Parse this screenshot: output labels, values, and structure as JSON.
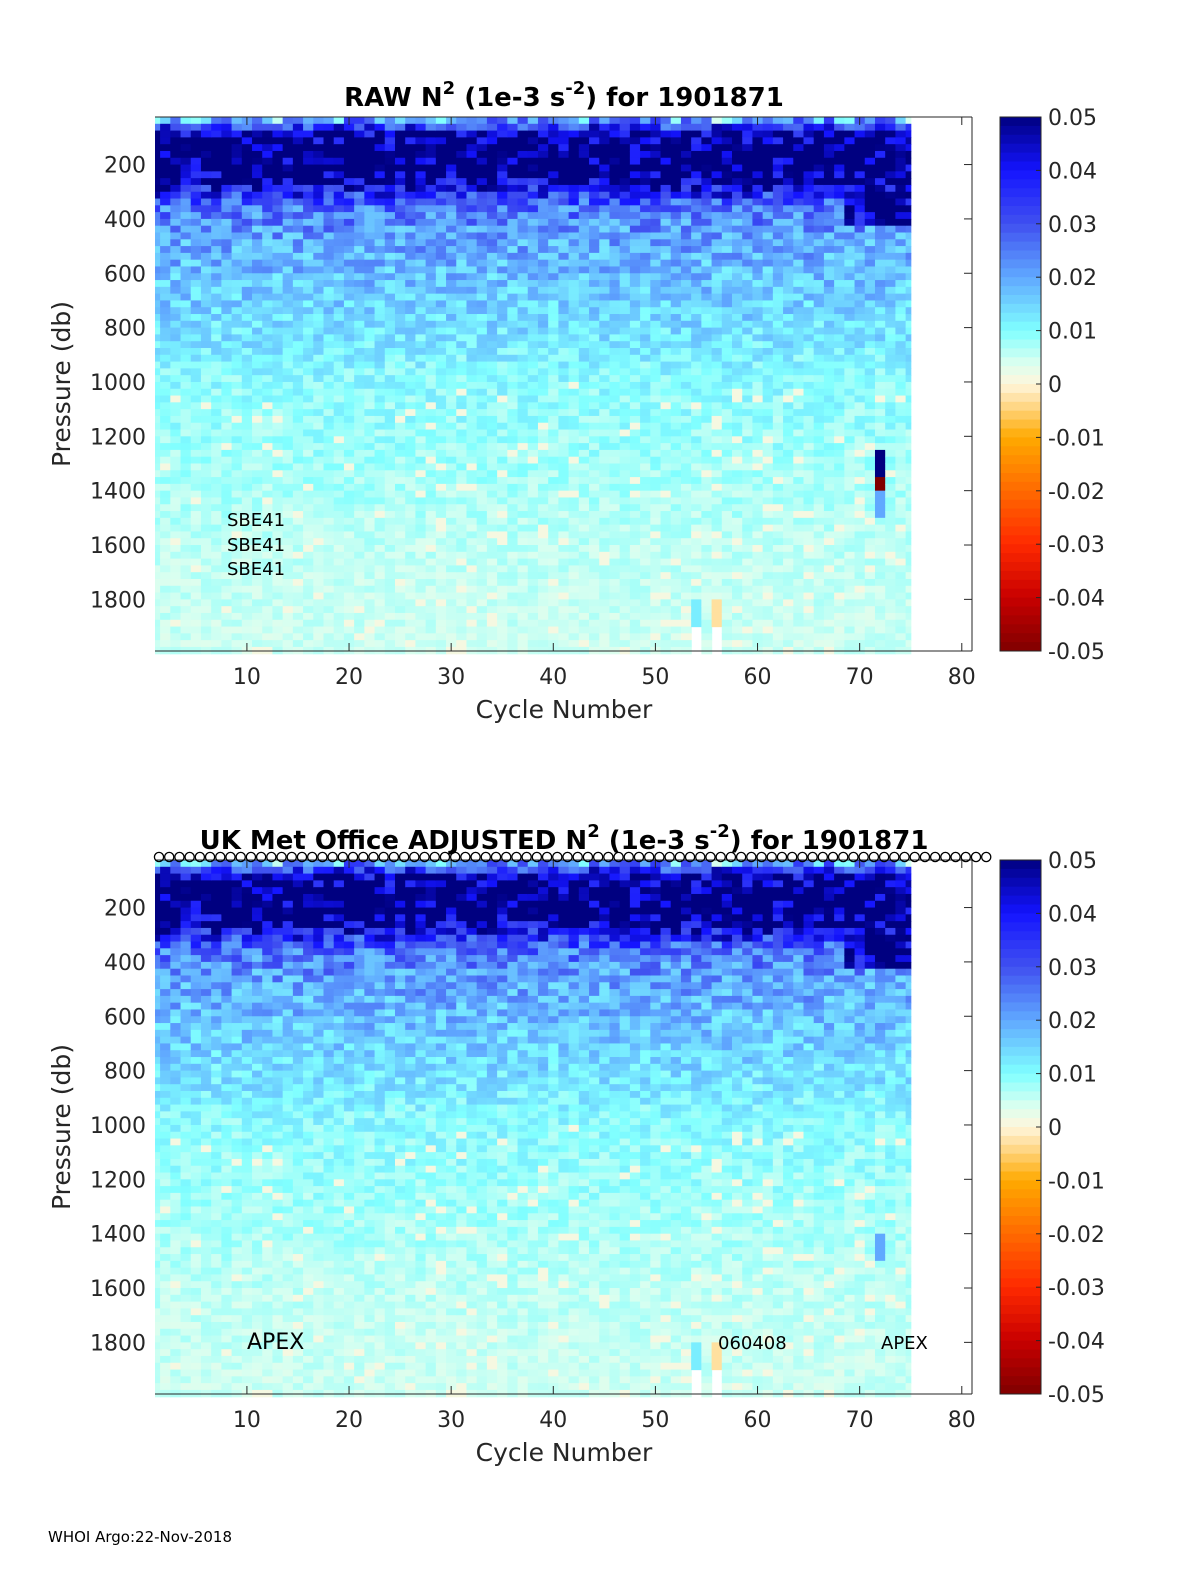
{
  "footer": "WHOI Argo:22-Nov-2018",
  "chart_data": [
    {
      "type": "heatmap",
      "title": {
        "main": "RAW N",
        "sup1": "2",
        "mid": " (1e-3 s",
        "sup2": "-2",
        "end": ") for 1901871"
      },
      "xlabel": "Cycle Number",
      "ylabel": "Pressure (db)",
      "xlim": [
        1,
        81
      ],
      "ylim": [
        25,
        1990
      ],
      "y_reversed": true,
      "xticks": [
        "10",
        "20",
        "30",
        "40",
        "50",
        "60",
        "70",
        "80"
      ],
      "yticks": [
        "200",
        "400",
        "600",
        "800",
        "1000",
        "1200",
        "1400",
        "1600",
        "1800"
      ],
      "cycles": [
        1,
        75
      ],
      "pressure_bin_db": 50,
      "mean_profile": [
        [
          40,
          0.012
        ],
        [
          75,
          0.05
        ],
        [
          150,
          0.06
        ],
        [
          250,
          0.055
        ],
        [
          300,
          0.04
        ],
        [
          350,
          0.028
        ],
        [
          450,
          0.022
        ],
        [
          600,
          0.018
        ],
        [
          800,
          0.014
        ],
        [
          1000,
          0.01
        ],
        [
          1300,
          0.008
        ],
        [
          1600,
          0.006
        ],
        [
          1990,
          0.005
        ]
      ],
      "relative_variability": 0.35,
      "anomalies": [
        {
          "cycle": 72,
          "p_from": 1250,
          "p_to": 1350,
          "value": 0.05
        },
        {
          "cycle": 72,
          "p_from": 1350,
          "p_to": 1400,
          "value": -0.05
        },
        {
          "cycle": 72,
          "p_from": 1400,
          "p_to": 1500,
          "value": 0.02
        },
        {
          "cycle": 56,
          "p_from": 1800,
          "p_to": 1900,
          "value": -0.003
        },
        {
          "cycle": 54,
          "p_from": 1800,
          "p_to": 1900,
          "value": 0.012
        }
      ],
      "missing": [
        {
          "cycle": 54,
          "p_from": 1900
        },
        {
          "cycle": 56,
          "p_from": 1900
        }
      ],
      "annotations": [
        "SBE41",
        "SBE41",
        "SBE41"
      ],
      "colorbar": {
        "range": [
          -0.05,
          0.05
        ],
        "ticks": [
          "0.05",
          "0.04",
          "0.03",
          "0.02",
          "0.01",
          "0",
          "-0.01",
          "-0.02",
          "-0.03",
          "-0.04",
          "-0.05"
        ]
      }
    },
    {
      "type": "heatmap",
      "title": {
        "main": "UK Met Office  ADJUSTED N",
        "sup1": "2",
        "mid": " (1e-3 s",
        "sup2": "-2",
        "end": ") for 1901871"
      },
      "xlabel": "Cycle Number",
      "ylabel": "Pressure (db)",
      "xlim": [
        1,
        81
      ],
      "ylim": [
        25,
        1990
      ],
      "y_reversed": true,
      "xticks": [
        "10",
        "20",
        "30",
        "40",
        "50",
        "60",
        "70",
        "80"
      ],
      "yticks": [
        "200",
        "400",
        "600",
        "800",
        "1000",
        "1200",
        "1400",
        "1600",
        "1800"
      ],
      "cycles": [
        1,
        75
      ],
      "pressure_bin_db": 50,
      "mean_profile": [
        [
          40,
          0.012
        ],
        [
          75,
          0.05
        ],
        [
          150,
          0.06
        ],
        [
          250,
          0.055
        ],
        [
          300,
          0.04
        ],
        [
          350,
          0.028
        ],
        [
          450,
          0.022
        ],
        [
          600,
          0.018
        ],
        [
          800,
          0.014
        ],
        [
          1000,
          0.01
        ],
        [
          1300,
          0.008
        ],
        [
          1600,
          0.006
        ],
        [
          1990,
          0.005
        ]
      ],
      "relative_variability": 0.35,
      "anomalies": [
        {
          "cycle": 72,
          "p_from": 1400,
          "p_to": 1500,
          "value": 0.02
        },
        {
          "cycle": 56,
          "p_from": 1800,
          "p_to": 1900,
          "value": -0.003
        },
        {
          "cycle": 54,
          "p_from": 1800,
          "p_to": 1900,
          "value": 0.012
        }
      ],
      "missing": [
        {
          "cycle": 54,
          "p_from": 1900
        },
        {
          "cycle": 56,
          "p_from": 1900
        }
      ],
      "qc_markers": "o",
      "qc_marker_cycles": [
        1,
        82
      ],
      "annotations": [
        "APEX",
        "060408",
        "APEX"
      ],
      "colorbar": {
        "range": [
          -0.05,
          0.05
        ],
        "ticks": [
          "0.05",
          "0.04",
          "0.03",
          "0.02",
          "0.01",
          "0",
          "-0.01",
          "-0.02",
          "-0.03",
          "-0.04",
          "-0.05"
        ]
      }
    }
  ],
  "colormap": [
    [
      -0.05,
      "#800000"
    ],
    [
      -0.04,
      "#c80000"
    ],
    [
      -0.03,
      "#ff2a00"
    ],
    [
      -0.02,
      "#ff6a00"
    ],
    [
      -0.01,
      "#ffaa00"
    ],
    [
      -0.004,
      "#ffd88a"
    ],
    [
      0,
      "#fff6dc"
    ],
    [
      0.004,
      "#d8fff0"
    ],
    [
      0.01,
      "#80ffff"
    ],
    [
      0.02,
      "#60a8ff"
    ],
    [
      0.03,
      "#4050f0"
    ],
    [
      0.04,
      "#1414ff"
    ],
    [
      0.05,
      "#000080"
    ]
  ]
}
